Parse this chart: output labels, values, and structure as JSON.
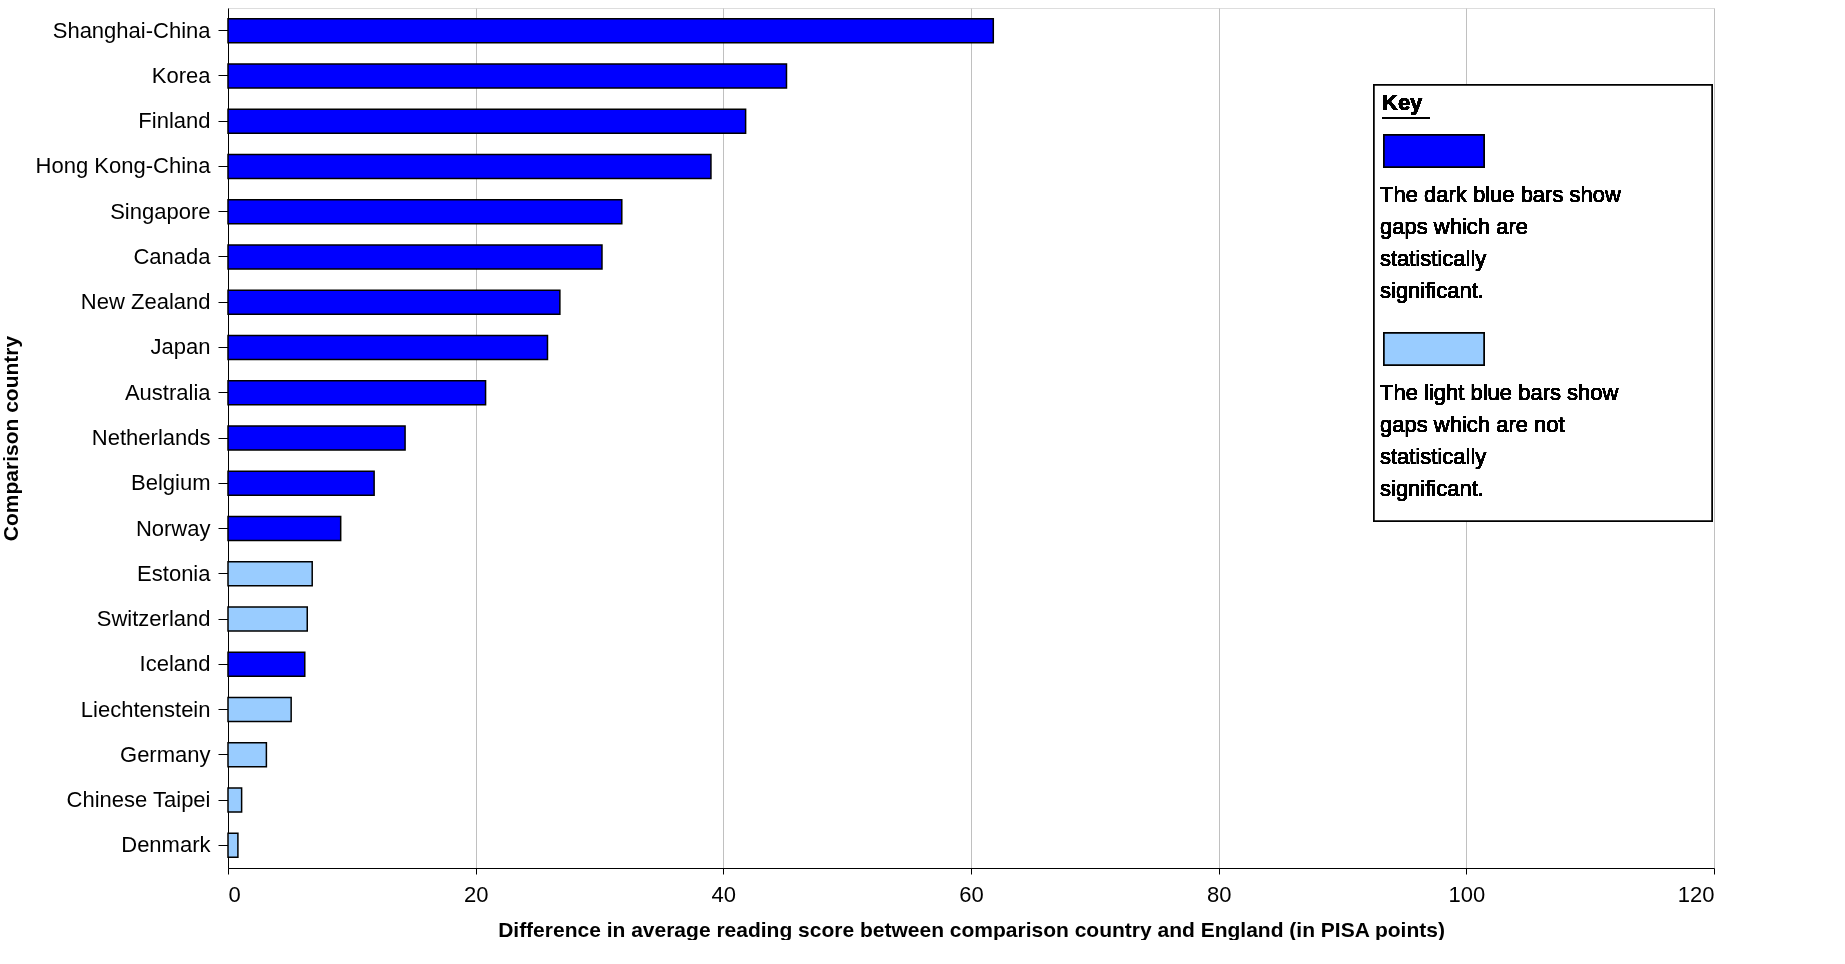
{
  "chart_data": {
    "type": "bar",
    "orientation": "horizontal",
    "xlabel": "Difference in average reading score between comparison country and England (in PISA points)",
    "ylabel": "Comparison country",
    "legend_title": "Key",
    "categories": [
      "Shanghai-China",
      "Korea",
      "Finland",
      "Hong Kong-China",
      "Singapore",
      "Canada",
      "New Zealand",
      "Japan",
      "Australia",
      "Netherlands",
      "Belgium",
      "Norway",
      "Estonia",
      "Switzerland",
      "Iceland",
      "Liechtenstein",
      "Germany",
      "Chinese Taipei",
      "Denmark"
    ],
    "series": [
      {
        "name": "The dark blue bars show gaps which are statistically significant.",
        "color": "#0000ff",
        "values": [
          61.8,
          45.1,
          41.8,
          39.0,
          31.8,
          30.2,
          26.8,
          25.8,
          20.8,
          14.3,
          11.8,
          9.1,
          null,
          null,
          6.2,
          null,
          null,
          null,
          null
        ]
      },
      {
        "name": "The light blue bars show gaps which are not statistically significant.",
        "color": "#99ccff",
        "values": [
          null,
          null,
          null,
          null,
          null,
          null,
          null,
          null,
          null,
          null,
          null,
          null,
          6.8,
          6.4,
          null,
          5.1,
          3.1,
          1.1,
          0.8
        ]
      }
    ],
    "xlim": [
      0,
      120
    ],
    "xticks": [
      0,
      20,
      40,
      60,
      80,
      100,
      120
    ],
    "grid": "x",
    "legend": "top right"
  }
}
